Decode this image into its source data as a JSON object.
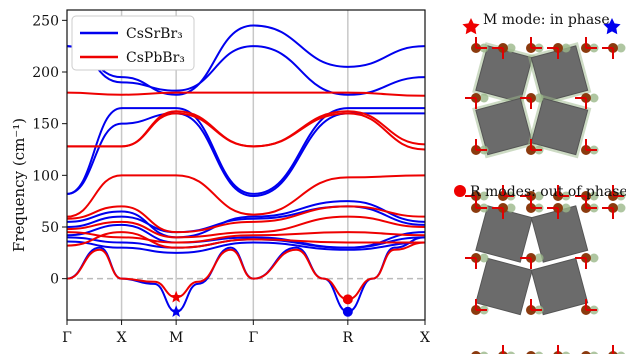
{
  "chart_data": {
    "type": "line",
    "xlabel": "",
    "ylabel": "Frequency (cm⁻¹)",
    "ylim": [
      -40,
      260
    ],
    "yticks": [
      0,
      50,
      100,
      150,
      200,
      250
    ],
    "kpath": [
      {
        "label": "Γ",
        "pos": 0.0
      },
      {
        "label": "X",
        "pos": 1.0
      },
      {
        "label": "M",
        "pos": 2.0
      },
      {
        "label": "Γ",
        "pos": 3.414
      },
      {
        "label": "R",
        "pos": 5.146
      },
      {
        "label": "X",
        "pos": 6.56
      }
    ],
    "grid": "vertical lines at high-symmetry points",
    "zero_line": "dashed",
    "legend": {
      "placement": "top-left"
    },
    "series": [
      {
        "name": "CsSrBr₃",
        "color": "#0000ee",
        "branches": [
          {
            "x": [
              0,
              1,
              2,
              3.414,
              5.146,
              6.56
            ],
            "y": [
              225,
              195,
              178,
              245,
              205,
              225
            ]
          },
          {
            "x": [
              0,
              1,
              2,
              3.414,
              5.146,
              6.56
            ],
            "y": [
              225,
              190,
              182,
              225,
              178,
              195
            ]
          },
          {
            "x": [
              0,
              1,
              2,
              3.414,
              5.146,
              6.56
            ],
            "y": [
              82,
              165,
              165,
              82,
              165,
              165
            ]
          },
          {
            "x": [
              0,
              1,
              2,
              3.414,
              5.146,
              6.56
            ],
            "y": [
              82,
              150,
              160,
              80,
              160,
              160
            ]
          },
          {
            "x": [
              0,
              1,
              2,
              3.414,
              5.146,
              6.56
            ],
            "y": [
              55,
              65,
              40,
              60,
              75,
              55
            ]
          },
          {
            "x": [
              0,
              1,
              2,
              3.414,
              5.146,
              6.56
            ],
            "y": [
              50,
              60,
              45,
              58,
              70,
              52
            ]
          },
          {
            "x": [
              0,
              1,
              2,
              3.414,
              5.146,
              6.56
            ],
            "y": [
              42,
              52,
              35,
              40,
              30,
              45
            ]
          },
          {
            "x": [
              0,
              1,
              2,
              3.414,
              5.146,
              6.56
            ],
            "y": [
              40,
              35,
              30,
              38,
              30,
              40
            ]
          },
          {
            "x": [
              0,
              1,
              2,
              3.414,
              5.146,
              6.56
            ],
            "y": [
              36,
              30,
              25,
              35,
              28,
              35
            ]
          },
          {
            "x": [
              0,
              0.6,
              1,
              1.6,
              2,
              2.4,
              3,
              3.414
            ],
            "y": [
              0,
              30,
              0,
              -5,
              -32,
              -5,
              30,
              0
            ]
          },
          {
            "x": [
              3.414,
              4.2,
              4.7,
              5.146,
              5.6,
              6,
              6.56
            ],
            "y": [
              0,
              30,
              0,
              -32,
              0,
              30,
              40
            ]
          }
        ]
      },
      {
        "name": "CsPbBr₃",
        "color": "#ee0000",
        "branches": [
          {
            "x": [
              0,
              1,
              2,
              3.414,
              5.146,
              6.56
            ],
            "y": [
              180,
              178,
              180,
              180,
              180,
              177
            ]
          },
          {
            "x": [
              0,
              1,
              2,
              3.414,
              5.146,
              6.56
            ],
            "y": [
              128,
              128,
              162,
              128,
              162,
              130
            ]
          },
          {
            "x": [
              0,
              1,
              2,
              3.414,
              5.146,
              6.56
            ],
            "y": [
              128,
              128,
              160,
              128,
              160,
              125
            ]
          },
          {
            "x": [
              0,
              1,
              2,
              3.414,
              5.146,
              6.56
            ],
            "y": [
              60,
              100,
              100,
              62,
              98,
              100
            ]
          },
          {
            "x": [
              0,
              1,
              2,
              3.414,
              5.146,
              6.56
            ],
            "y": [
              58,
              70,
              45,
              55,
              70,
              60
            ]
          },
          {
            "x": [
              0,
              1,
              2,
              3.414,
              5.146,
              6.56
            ],
            "y": [
              48,
              55,
              40,
              45,
              60,
              50
            ]
          },
          {
            "x": [
              0,
              1,
              2,
              3.414,
              5.146,
              6.56
            ],
            "y": [
              45,
              40,
              35,
              42,
              45,
              42
            ]
          },
          {
            "x": [
              0,
              1,
              2,
              3.414,
              5.146,
              6.56
            ],
            "y": [
              32,
              45,
              30,
              38,
              35,
              35
            ]
          },
          {
            "x": [
              0,
              0.6,
              1,
              1.6,
              2,
              2.4,
              3,
              3.414
            ],
            "y": [
              0,
              28,
              0,
              -3,
              -18,
              -3,
              28,
              0
            ]
          },
          {
            "x": [
              3.414,
              4.2,
              4.7,
              5.146,
              5.6,
              6,
              6.56
            ],
            "y": [
              0,
              28,
              0,
              -20,
              0,
              28,
              35
            ]
          }
        ]
      }
    ],
    "markers": [
      {
        "series": "CsPbBr₃",
        "shape": "star",
        "x": 2.0,
        "y": -18
      },
      {
        "series": "CsSrBr₃",
        "shape": "star",
        "x": 2.0,
        "y": -32
      },
      {
        "series": "CsPbBr₃",
        "shape": "circle",
        "x": 5.146,
        "y": -20
      },
      {
        "series": "CsSrBr₃",
        "shape": "circle",
        "x": 5.146,
        "y": -32
      }
    ]
  },
  "panels": {
    "m_mode": {
      "caption": "M mode: in phase",
      "marker_left_color": "#ee0000",
      "marker_right_color": "#0000ee"
    },
    "r_mode": {
      "caption": "R modes: out of phase",
      "marker_color": "#ee0000"
    }
  },
  "structure_colors": {
    "octahedron": "#6b6b6b",
    "cs": "#8b3a0e",
    "br": "#9bb88a",
    "arrow": "#e00000"
  }
}
